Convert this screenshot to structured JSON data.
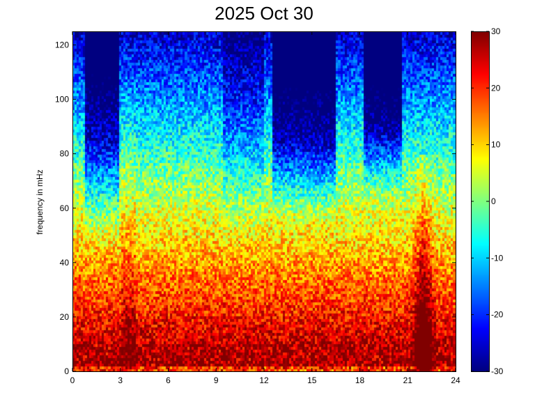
{
  "chart_data": {
    "type": "heatmap",
    "title": "2025 Oct 30",
    "xlabel": "",
    "ylabel": "frequency in mHz",
    "xlim": [
      0,
      24
    ],
    "ylim": [
      0,
      125
    ],
    "x_ticks": [
      "0",
      "3",
      "6",
      "9",
      "12",
      "15",
      "18",
      "21",
      "24"
    ],
    "y_ticks": [
      "0",
      "20",
      "40",
      "60",
      "80",
      "100",
      "120"
    ],
    "colorbar": {
      "colormap": "jet",
      "range": [
        -30,
        30
      ],
      "ticks": [
        "-30",
        "-20",
        "-10",
        "0",
        "10",
        "20",
        "30"
      ]
    },
    "grid": false,
    "features": [
      {
        "description": "strong power band near low frequencies",
        "freq_range_mHz": [
          0,
          10
        ],
        "value": 30
      },
      {
        "description": "low power regions at high frequencies",
        "hours": [
          [
            1,
            3
          ],
          [
            13,
            15
          ],
          [
            18.5,
            20.5
          ]
        ],
        "value": -25
      },
      {
        "description": "bright vertical streak",
        "hours": [
          21.5,
          22.5
        ],
        "value": 25
      }
    ]
  }
}
